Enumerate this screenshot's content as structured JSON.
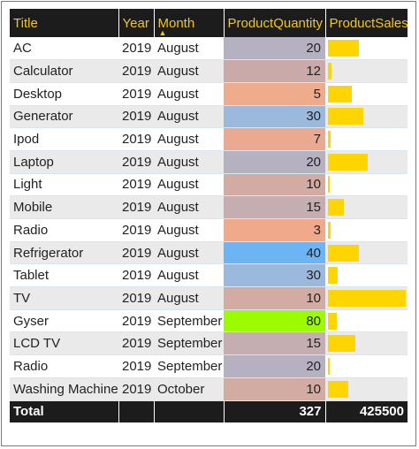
{
  "table": {
    "headers": {
      "title": "Title",
      "year": "Year",
      "month": "Month",
      "quantity": "ProductQuantity",
      "sales": "ProductSales"
    },
    "sort_icon": "triangle-up-icon",
    "rows": [
      {
        "title": "AC",
        "year": "2019",
        "month": "August",
        "quantity": "20",
        "quantity_color": "#b5b1c1",
        "sales_fraction": 0.4
      },
      {
        "title": "Calculator",
        "year": "2019",
        "month": "August",
        "quantity": "12",
        "quantity_color": "#c9aaa9",
        "sales_fraction": 0.05
      },
      {
        "title": "Desktop",
        "year": "2019",
        "month": "August",
        "quantity": "5",
        "quantity_color": "#eeac8d",
        "sales_fraction": 0.31
      },
      {
        "title": "Generator",
        "year": "2019",
        "month": "August",
        "quantity": "30",
        "quantity_color": "#9bb9dd",
        "sales_fraction": 0.45
      },
      {
        "title": "Ipod",
        "year": "2019",
        "month": "August",
        "quantity": "7",
        "quantity_color": "#eaaa91",
        "sales_fraction": 0.03
      },
      {
        "title": "Laptop",
        "year": "2019",
        "month": "August",
        "quantity": "20",
        "quantity_color": "#b5b1c1",
        "sales_fraction": 0.51
      },
      {
        "title": "Light",
        "year": "2019",
        "month": "August",
        "quantity": "10",
        "quantity_color": "#d2aca2",
        "sales_fraction": 0.02
      },
      {
        "title": "Mobile",
        "year": "2019",
        "month": "August",
        "quantity": "15",
        "quantity_color": "#c4aeb1",
        "sales_fraction": 0.2
      },
      {
        "title": "Radio",
        "year": "2019",
        "month": "August",
        "quantity": "3",
        "quantity_color": "#f0a98a",
        "sales_fraction": 0.03
      },
      {
        "title": "Refrigerator",
        "year": "2019",
        "month": "August",
        "quantity": "40",
        "quantity_color": "#6cb4f4",
        "sales_fraction": 0.4
      },
      {
        "title": "Tablet",
        "year": "2019",
        "month": "August",
        "quantity": "30",
        "quantity_color": "#9bb9dd",
        "sales_fraction": 0.13
      },
      {
        "title": "TV",
        "year": "2019",
        "month": "August",
        "quantity": "10",
        "quantity_color": "#d2aca2",
        "sales_fraction": 1.0
      },
      {
        "title": "Gyser",
        "year": "2019",
        "month": "September",
        "quantity": "80",
        "quantity_color": "#9cfb00",
        "sales_fraction": 0.11
      },
      {
        "title": "LCD TV",
        "year": "2019",
        "month": "September",
        "quantity": "15",
        "quantity_color": "#c4aeb1",
        "sales_fraction": 0.35
      },
      {
        "title": "Radio",
        "year": "2019",
        "month": "September",
        "quantity": "20",
        "quantity_color": "#b5b1c1",
        "sales_fraction": 0.02
      },
      {
        "title": "Washing Machine",
        "year": "2019",
        "month": "October",
        "quantity": "10",
        "quantity_color": "#d2aca2",
        "sales_fraction": 0.26
      }
    ],
    "totals": {
      "label": "Total",
      "quantity": "327",
      "sales": "425500"
    },
    "colors": {
      "header_background": "#1c1c1c",
      "header_text": "#f2c811",
      "data_bar": "#ffd500",
      "alt_row": "#eaeaea"
    }
  }
}
